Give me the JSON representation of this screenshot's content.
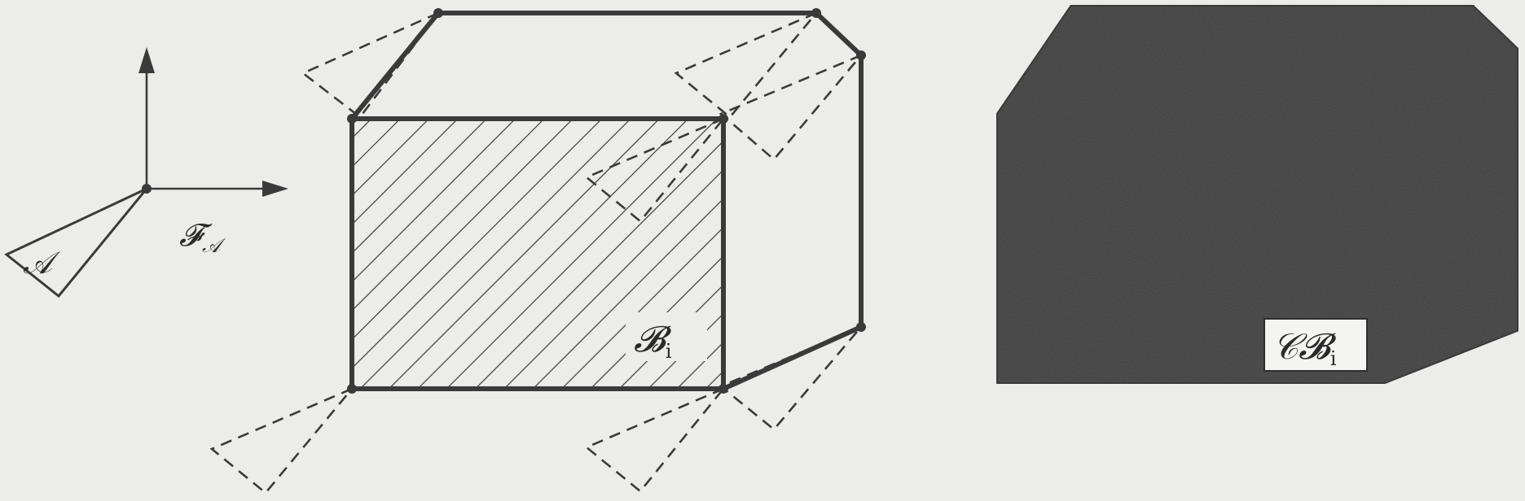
{
  "diagram": {
    "frame_symbol": "𝓕",
    "frame_subscript": "𝒜",
    "robot_symbol": "𝒜",
    "obstacle_symbol": "𝓑",
    "obstacle_subscript": "i",
    "cobstacle_symbol": "𝒞𝓑",
    "cobstacle_subscript": "i"
  },
  "colors": {
    "background": "#ececea",
    "ink": "#3a3a3a",
    "cobstacle_fill": "#3b3b3b",
    "label_box": "#f4f4f2"
  }
}
